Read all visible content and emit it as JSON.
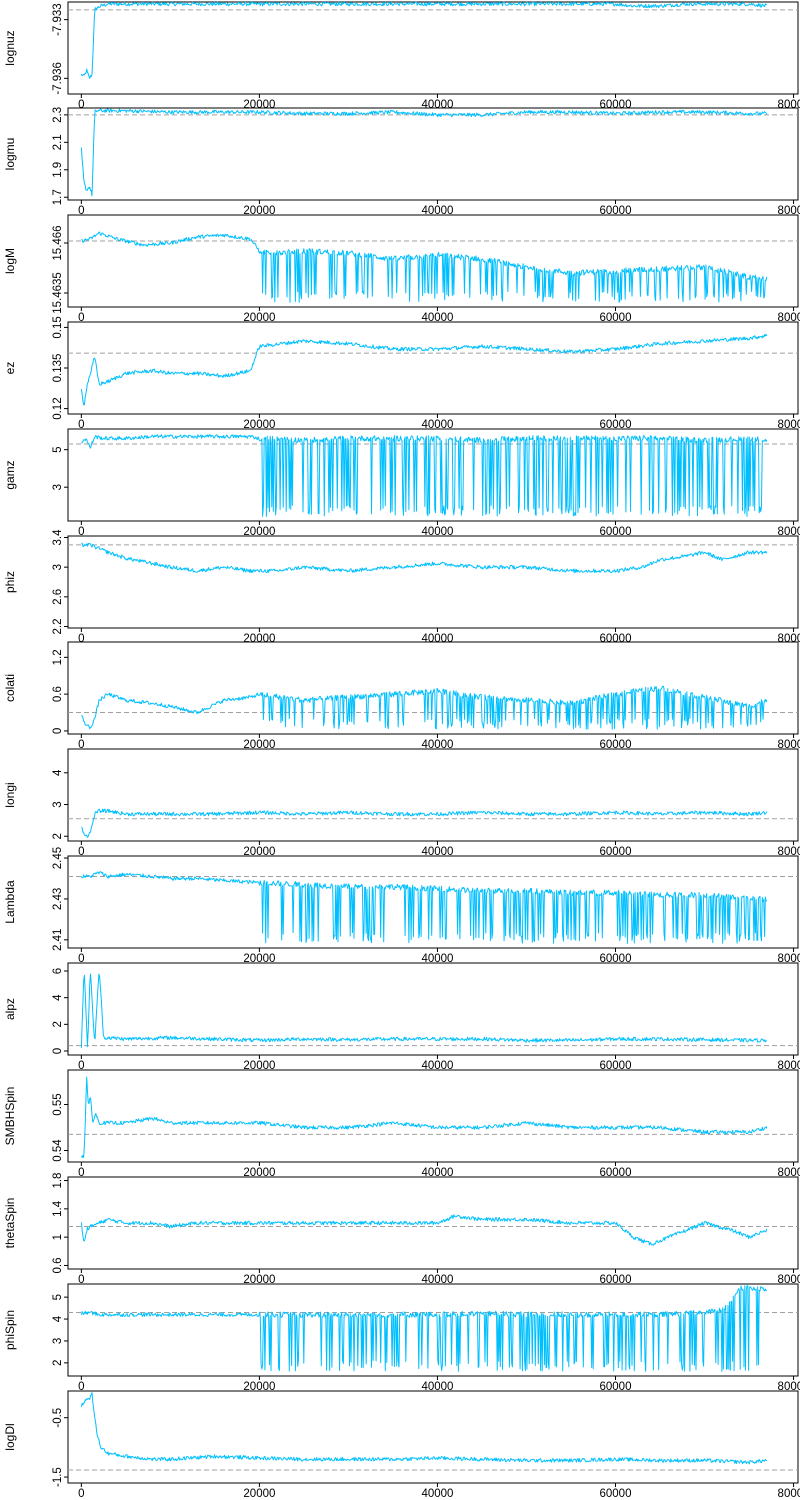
{
  "chart_data": [
    {
      "type": "line",
      "ylabel": "lognuz",
      "x_ticks": [
        0,
        20000,
        40000,
        60000,
        80000
      ],
      "y_ticks": [
        -7.936,
        -7.933
      ],
      "ylim": [
        -7.9368,
        -7.9321
      ],
      "xlim": [
        -1500,
        80500
      ],
      "ref": -7.9325,
      "color": "#00bfff",
      "x": [
        0,
        300,
        600,
        900,
        1200,
        1500,
        1800,
        2200,
        3000,
        5000,
        10000,
        15000,
        20000,
        25000,
        30000,
        35000,
        40000,
        45000,
        50000,
        55000,
        60000,
        62000,
        65000,
        68000,
        70000,
        72000,
        75000,
        77000
      ],
      "y": [
        -7.9358,
        -7.9359,
        -7.9356,
        -7.936,
        -7.9358,
        -7.9325,
        -7.9324,
        -7.9323,
        -7.9322,
        -7.9322,
        -7.9322,
        -7.9322,
        -7.9322,
        -7.9322,
        -7.9322,
        -7.9322,
        -7.9322,
        -7.9322,
        -7.9322,
        -7.9322,
        -7.9322,
        -7.9323,
        -7.9323,
        -7.9322,
        -7.9322,
        -7.9322,
        -7.9322,
        -7.9323
      ]
    },
    {
      "type": "line",
      "ylabel": "logmu",
      "x_ticks": [
        0,
        20000,
        40000,
        60000,
        80000
      ],
      "y_ticks": [
        1.7,
        1.9,
        2.1,
        2.3
      ],
      "ylim": [
        1.68,
        2.35
      ],
      "xlim": [
        -1500,
        80500
      ],
      "ref": 2.3,
      "color": "#00bfff",
      "x": [
        0,
        300,
        600,
        900,
        1200,
        1500,
        1800,
        2500,
        5000,
        10000,
        15000,
        20000,
        25000,
        30000,
        35000,
        40000,
        45000,
        50000,
        55000,
        60000,
        65000,
        70000,
        75000,
        77000
      ],
      "y": [
        2.05,
        1.8,
        1.75,
        1.78,
        1.72,
        2.32,
        2.33,
        2.33,
        2.33,
        2.32,
        2.32,
        2.32,
        2.31,
        2.31,
        2.32,
        2.3,
        2.3,
        2.32,
        2.32,
        2.31,
        2.32,
        2.32,
        2.31,
        2.31
      ]
    },
    {
      "type": "line",
      "ylabel": "logM",
      "x_ticks": [
        0,
        20000,
        40000,
        60000,
        80000
      ],
      "y_ticks": [
        15.4635,
        15.466
      ],
      "ylim": [
        15.4628,
        15.4674
      ],
      "xlim": [
        -1500,
        80500
      ],
      "ref": 15.4661,
      "color": "#00bfff",
      "x": [
        0,
        1000,
        2000,
        4000,
        7000,
        10000,
        13000,
        16000,
        19000,
        20000,
        22000,
        25000,
        30000,
        35000,
        40000,
        45000,
        50000,
        55000,
        60000,
        65000,
        70000,
        75000,
        77000
      ],
      "y": [
        15.4661,
        15.4662,
        15.4665,
        15.4662,
        15.4659,
        15.466,
        15.4663,
        15.4664,
        15.4662,
        15.4656,
        15.4655,
        15.4656,
        15.4655,
        15.4652,
        15.4654,
        15.4652,
        15.4648,
        15.4645,
        15.4646,
        15.4647,
        15.4648,
        15.4643,
        15.4642
      ]
    },
    {
      "type": "line",
      "ylabel": "ez",
      "x_ticks": [
        0,
        20000,
        40000,
        60000,
        80000
      ],
      "y_ticks": [
        0.12,
        0.135,
        0.15
      ],
      "ylim": [
        0.118,
        0.152
      ],
      "xlim": [
        -1500,
        80500
      ],
      "ref": 0.1405,
      "color": "#00bfff",
      "x": [
        0,
        300,
        600,
        1000,
        1500,
        2000,
        3000,
        5000,
        8000,
        10000,
        13000,
        16000,
        19000,
        20000,
        25000,
        30000,
        35000,
        40000,
        45000,
        50000,
        55000,
        60000,
        65000,
        70000,
        75000,
        77000
      ],
      "y": [
        0.127,
        0.121,
        0.128,
        0.133,
        0.139,
        0.129,
        0.13,
        0.133,
        0.134,
        0.133,
        0.133,
        0.132,
        0.134,
        0.143,
        0.145,
        0.144,
        0.142,
        0.142,
        0.143,
        0.142,
        0.141,
        0.142,
        0.144,
        0.145,
        0.146,
        0.147
      ]
    },
    {
      "type": "line",
      "ylabel": "gamz",
      "x_ticks": [
        0,
        20000,
        40000,
        60000,
        80000
      ],
      "y_ticks": [
        3,
        5
      ],
      "ylim": [
        1.2,
        6.1
      ],
      "xlim": [
        -1500,
        80500
      ],
      "ref": 5.3,
      "color": "#00bfff",
      "x": [
        0,
        500,
        1000,
        1500,
        2500,
        5000,
        8000,
        12000,
        16000,
        19000,
        20000,
        25000,
        30000,
        35000,
        40000,
        45000,
        50000,
        55000,
        60000,
        65000,
        70000,
        75000,
        77000
      ],
      "y": [
        5.4,
        5.6,
        5.1,
        5.7,
        5.6,
        5.6,
        5.7,
        5.7,
        5.7,
        5.7,
        5.6,
        5.5,
        5.6,
        5.6,
        5.6,
        5.5,
        5.6,
        5.6,
        5.6,
        5.6,
        5.5,
        5.6,
        5.5
      ]
    },
    {
      "type": "line",
      "ylabel": "phiz",
      "x_ticks": [
        0,
        20000,
        40000,
        60000,
        80000
      ],
      "y_ticks": [
        2.2,
        2.6,
        3.0,
        3.4
      ],
      "ylim": [
        2.18,
        3.42
      ],
      "xlim": [
        -1500,
        80500
      ],
      "ref": 3.3,
      "color": "#00bfff",
      "x": [
        0,
        1000,
        2000,
        3000,
        5000,
        8000,
        10000,
        13000,
        16000,
        19000,
        22000,
        25000,
        30000,
        35000,
        40000,
        45000,
        50000,
        55000,
        60000,
        63000,
        65000,
        68000,
        70000,
        72000,
        75000,
        77000
      ],
      "y": [
        3.3,
        3.3,
        3.25,
        3.2,
        3.12,
        3.05,
        3.0,
        2.95,
        3.0,
        2.95,
        2.95,
        3.0,
        2.95,
        3.0,
        3.05,
        3.0,
        3.0,
        2.95,
        2.95,
        3.0,
        3.1,
        3.15,
        3.2,
        3.1,
        3.2,
        3.2
      ]
    },
    {
      "type": "line",
      "ylabel": "colati",
      "x_ticks": [
        0,
        20000,
        40000,
        60000,
        80000
      ],
      "y_ticks": [
        0.0,
        0.6,
        1.2
      ],
      "ylim": [
        -0.05,
        1.45
      ],
      "xlim": [
        -1500,
        80500
      ],
      "ref": 0.3,
      "color": "#00bfff",
      "x": [
        0,
        500,
        1000,
        1500,
        2000,
        3000,
        5000,
        8000,
        10000,
        13000,
        16000,
        19000,
        20000,
        25000,
        30000,
        35000,
        40000,
        45000,
        50000,
        55000,
        60000,
        65000,
        70000,
        75000,
        77000
      ],
      "y": [
        0.25,
        0.1,
        0.05,
        0.2,
        0.5,
        0.6,
        0.5,
        0.45,
        0.4,
        0.3,
        0.5,
        0.55,
        0.6,
        0.5,
        0.55,
        0.6,
        0.65,
        0.55,
        0.5,
        0.45,
        0.6,
        0.7,
        0.55,
        0.4,
        0.5
      ]
    },
    {
      "type": "line",
      "ylabel": "longi",
      "x_ticks": [
        0,
        20000,
        40000,
        60000,
        80000
      ],
      "y_ticks": [
        2.0,
        3.0,
        4.0
      ],
      "ylim": [
        1.85,
        4.75
      ],
      "xlim": [
        -1500,
        80500
      ],
      "ref": 2.55,
      "color": "#00bfff",
      "x": [
        0,
        300,
        600,
        1000,
        1500,
        2000,
        3000,
        5000,
        10000,
        15000,
        20000,
        25000,
        30000,
        35000,
        40000,
        45000,
        50000,
        55000,
        60000,
        65000,
        70000,
        75000,
        77000
      ],
      "y": [
        2.3,
        2.1,
        2.0,
        2.1,
        2.7,
        2.8,
        2.8,
        2.7,
        2.7,
        2.7,
        2.75,
        2.7,
        2.75,
        2.7,
        2.7,
        2.75,
        2.7,
        2.7,
        2.75,
        2.7,
        2.75,
        2.7,
        2.75
      ]
    },
    {
      "type": "line",
      "ylabel": "Lambda",
      "x_ticks": [
        0,
        20000,
        40000,
        60000,
        80000
      ],
      "y_ticks": [
        2.41,
        2.43,
        2.45
      ],
      "ylim": [
        2.406,
        2.451
      ],
      "xlim": [
        -1500,
        80500
      ],
      "ref": 2.441,
      "color": "#00bfff",
      "x": [
        0,
        1000,
        2000,
        3000,
        5000,
        8000,
        10000,
        13000,
        16000,
        20000,
        25000,
        30000,
        35000,
        40000,
        45000,
        50000,
        55000,
        60000,
        65000,
        70000,
        73000,
        75000,
        77000
      ],
      "y": [
        2.441,
        2.441,
        2.443,
        2.441,
        2.442,
        2.441,
        2.44,
        2.44,
        2.439,
        2.438,
        2.437,
        2.436,
        2.436,
        2.435,
        2.434,
        2.434,
        2.433,
        2.433,
        2.432,
        2.432,
        2.431,
        2.43,
        2.43
      ]
    },
    {
      "type": "line",
      "ylabel": "alpz",
      "x_ticks": [
        0,
        20000,
        40000,
        60000,
        80000
      ],
      "y_ticks": [
        0,
        2,
        4,
        6
      ],
      "ylim": [
        -0.3,
        6.6
      ],
      "xlim": [
        -1500,
        80500
      ],
      "ref": 0.4,
      "color": "#00bfff",
      "x": [
        0,
        300,
        700,
        1000,
        1500,
        2000,
        2500,
        3000,
        5000,
        10000,
        15000,
        20000,
        25000,
        30000,
        35000,
        40000,
        45000,
        50000,
        55000,
        60000,
        65000,
        70000,
        75000,
        77000
      ],
      "y": [
        0.3,
        6.2,
        0.2,
        6.1,
        0.5,
        6.2,
        1.0,
        1.0,
        0.9,
        1.0,
        0.9,
        0.8,
        0.9,
        0.85,
        0.9,
        0.9,
        0.9,
        0.8,
        0.8,
        0.9,
        0.9,
        0.85,
        0.8,
        0.8
      ]
    },
    {
      "type": "line",
      "ylabel": "SMBHSpin",
      "x_ticks": [
        0,
        20000,
        40000,
        60000,
        80000
      ],
      "y_ticks": [
        0.54,
        0.55
      ],
      "ylim": [
        0.5375,
        0.5575
      ],
      "xlim": [
        -1500,
        80500
      ],
      "ref": 0.5435,
      "color": "#00bfff",
      "x": [
        0,
        300,
        600,
        800,
        1000,
        1300,
        1600,
        2000,
        3000,
        5000,
        8000,
        10000,
        15000,
        20000,
        25000,
        30000,
        35000,
        40000,
        45000,
        50000,
        55000,
        60000,
        65000,
        70000,
        75000,
        77000
      ],
      "y": [
        0.539,
        0.5385,
        0.556,
        0.549,
        0.552,
        0.546,
        0.548,
        0.546,
        0.546,
        0.546,
        0.547,
        0.546,
        0.546,
        0.546,
        0.545,
        0.545,
        0.546,
        0.545,
        0.545,
        0.546,
        0.545,
        0.545,
        0.545,
        0.544,
        0.544,
        0.545
      ]
    },
    {
      "type": "line",
      "ylabel": "thetaSpin",
      "x_ticks": [
        0,
        20000,
        40000,
        60000,
        80000
      ],
      "y_ticks": [
        0.6,
        1.0,
        1.4,
        1.8
      ],
      "ylim": [
        0.55,
        1.85
      ],
      "xlim": [
        -1500,
        80500
      ],
      "ref": 1.15,
      "color": "#00bfff",
      "x": [
        0,
        300,
        600,
        1000,
        2000,
        3000,
        5000,
        8000,
        10000,
        13000,
        16000,
        20000,
        25000,
        30000,
        35000,
        40000,
        42000,
        45000,
        50000,
        55000,
        60000,
        62000,
        64000,
        66000,
        68000,
        70000,
        73000,
        75000,
        77000
      ],
      "y": [
        1.2,
        0.9,
        1.1,
        1.15,
        1.2,
        1.25,
        1.2,
        1.2,
        1.15,
        1.2,
        1.2,
        1.2,
        1.2,
        1.2,
        1.2,
        1.2,
        1.3,
        1.25,
        1.25,
        1.2,
        1.2,
        1.0,
        0.9,
        1.0,
        1.1,
        1.2,
        1.1,
        1.0,
        1.1
      ]
    },
    {
      "type": "line",
      "ylabel": "phiSpin",
      "x_ticks": [
        0,
        20000,
        40000,
        60000,
        80000
      ],
      "y_ticks": [
        2,
        3,
        4,
        5
      ],
      "ylim": [
        1.4,
        5.6
      ],
      "xlim": [
        -1500,
        80500
      ],
      "ref": 4.3,
      "color": "#00bfff",
      "x": [
        0,
        1000,
        2000,
        5000,
        10000,
        15000,
        20000,
        25000,
        30000,
        35000,
        40000,
        45000,
        50000,
        55000,
        60000,
        65000,
        70000,
        72000,
        74000,
        77000
      ],
      "y": [
        4.25,
        4.3,
        4.2,
        4.2,
        4.2,
        4.2,
        4.2,
        4.2,
        4.2,
        4.2,
        4.2,
        4.25,
        4.2,
        4.2,
        4.2,
        4.2,
        4.3,
        4.4,
        5.4,
        5.4
      ]
    },
    {
      "type": "line",
      "ylabel": "logDl",
      "x_ticks": [
        0,
        20000,
        40000,
        60000,
        80000
      ],
      "y_ticks": [
        -1.5,
        -0.5
      ],
      "ylim": [
        -1.6,
        -0.05
      ],
      "xlim": [
        -1500,
        80500
      ],
      "ref": -1.38,
      "color": "#00bfff",
      "x": [
        0,
        300,
        600,
        900,
        1200,
        1500,
        1800,
        2200,
        3000,
        5000,
        8000,
        10000,
        15000,
        20000,
        25000,
        30000,
        35000,
        40000,
        45000,
        50000,
        55000,
        60000,
        65000,
        70000,
        75000,
        77000
      ],
      "y": [
        -0.3,
        -0.25,
        -0.15,
        -0.2,
        -0.1,
        -0.5,
        -0.8,
        -1.0,
        -1.1,
        -1.15,
        -1.2,
        -1.2,
        -1.15,
        -1.18,
        -1.2,
        -1.2,
        -1.2,
        -1.18,
        -1.2,
        -1.22,
        -1.22,
        -1.2,
        -1.22,
        -1.22,
        -1.25,
        -1.22
      ]
    }
  ]
}
